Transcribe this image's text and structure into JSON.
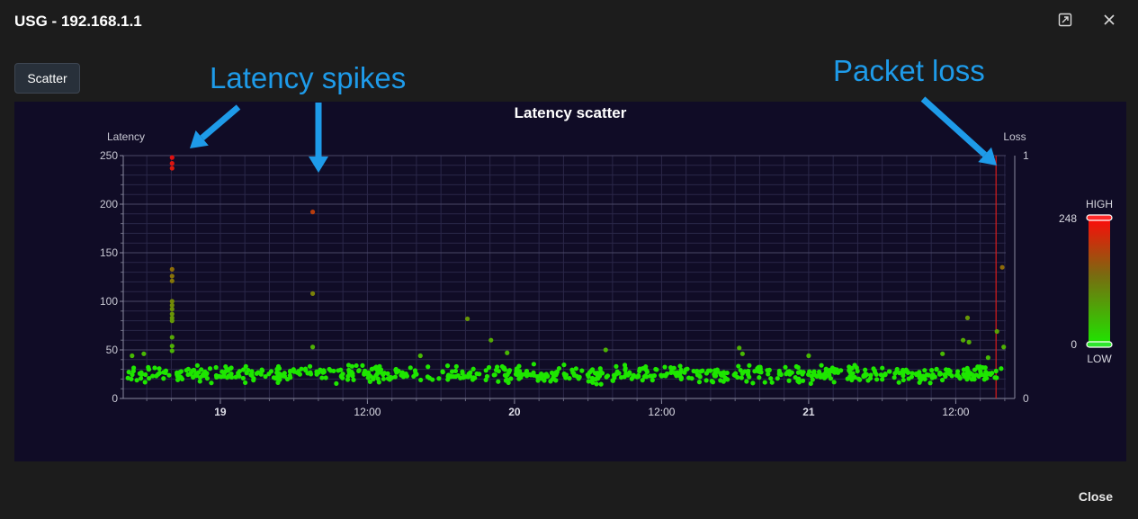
{
  "window": {
    "title": "USG - 192.168.1.1",
    "close_label": "Close"
  },
  "toolbar": {
    "scatter_label": "Scatter"
  },
  "annotations": {
    "spikes": "Latency spikes",
    "loss": "Packet loss"
  },
  "colors": {
    "point_low": "#1ee600",
    "point_high": "#e01010",
    "panel_bg": "#100c26",
    "annotation": "#1e9be9",
    "loss_line": "#d81b1b"
  },
  "icons": {
    "expand": "expand-icon",
    "close": "close-icon"
  },
  "chart_data": {
    "type": "scatter",
    "title": "Latency scatter",
    "ylabel": "Latency",
    "y2label": "Loss",
    "ylim": [
      0,
      250
    ],
    "y_ticks": [
      0,
      50,
      100,
      150,
      200,
      250
    ],
    "y2lim": [
      0,
      1
    ],
    "y2_ticks": [
      0,
      1
    ],
    "x_ticks": [
      {
        "x": 19.0,
        "label": "19",
        "bold": true
      },
      {
        "x": 19.5,
        "label": "12:00",
        "bold": false
      },
      {
        "x": 20.0,
        "label": "20",
        "bold": true
      },
      {
        "x": 20.5,
        "label": "12:00",
        "bold": false
      },
      {
        "x": 21.0,
        "label": "21",
        "bold": true
      },
      {
        "x": 21.5,
        "label": "12:00",
        "bold": false
      }
    ],
    "xlim": [
      18.67,
      21.67
    ],
    "color_scale": {
      "high_label": "HIGH",
      "low_label": "LOW",
      "max": 248,
      "min": 0
    },
    "baseline": {
      "center": 25,
      "spread": 5,
      "note_points": 700
    },
    "outliers": [
      {
        "x": 18.836,
        "y": 248
      },
      {
        "x": 18.836,
        "y": 242
      },
      {
        "x": 18.836,
        "y": 237
      },
      {
        "x": 18.836,
        "y": 133
      },
      {
        "x": 18.836,
        "y": 126
      },
      {
        "x": 18.836,
        "y": 121
      },
      {
        "x": 18.836,
        "y": 100
      },
      {
        "x": 18.836,
        "y": 96
      },
      {
        "x": 18.836,
        "y": 92
      },
      {
        "x": 18.836,
        "y": 87
      },
      {
        "x": 18.836,
        "y": 83
      },
      {
        "x": 18.836,
        "y": 80
      },
      {
        "x": 18.836,
        "y": 63
      },
      {
        "x": 18.836,
        "y": 54
      },
      {
        "x": 18.836,
        "y": 49
      },
      {
        "x": 19.314,
        "y": 192
      },
      {
        "x": 19.314,
        "y": 108
      },
      {
        "x": 19.314,
        "y": 53
      },
      {
        "x": 19.84,
        "y": 82
      },
      {
        "x": 19.92,
        "y": 60
      },
      {
        "x": 19.975,
        "y": 47
      },
      {
        "x": 20.31,
        "y": 50
      },
      {
        "x": 20.764,
        "y": 52
      },
      {
        "x": 20.775,
        "y": 46
      },
      {
        "x": 21.54,
        "y": 83
      },
      {
        "x": 21.525,
        "y": 60
      },
      {
        "x": 21.545,
        "y": 58
      },
      {
        "x": 21.64,
        "y": 69
      },
      {
        "x": 21.658,
        "y": 135
      },
      {
        "x": 21.663,
        "y": 53
      },
      {
        "x": 21.455,
        "y": 46
      },
      {
        "x": 21.61,
        "y": 42
      },
      {
        "x": 18.7,
        "y": 44
      },
      {
        "x": 18.74,
        "y": 46
      },
      {
        "x": 19.68,
        "y": 44
      },
      {
        "x": 21.0,
        "y": 44
      }
    ],
    "loss_events": [
      {
        "x": 21.637,
        "value": 1
      }
    ]
  }
}
